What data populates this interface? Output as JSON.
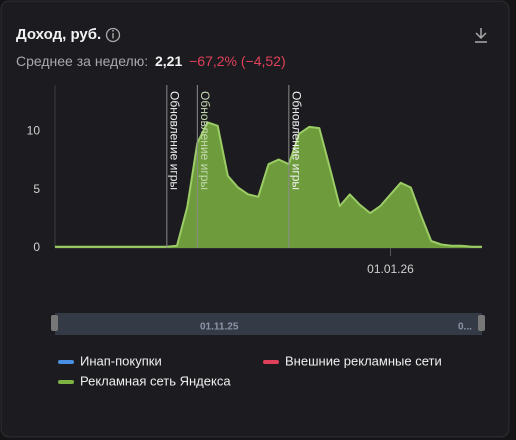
{
  "header": {
    "title": "Доход, руб.",
    "summary_label": "Среднее за неделю:",
    "summary_value": "2,21",
    "summary_change": "−67,2% (−4,52)"
  },
  "chart_data": {
    "type": "area",
    "categories": [
      null,
      null,
      null,
      null,
      null,
      null,
      null,
      null,
      null,
      null,
      null,
      null,
      null,
      null,
      null,
      null,
      null,
      null,
      null,
      null,
      null,
      null,
      null,
      null,
      null,
      null,
      null,
      null,
      null,
      null,
      null,
      null,
      null,
      "01.01.26",
      null,
      null,
      null,
      null,
      null,
      null,
      null,
      null,
      null
    ],
    "series": [
      {
        "name": "Инап-покупки",
        "color": "#4a90e2"
      },
      {
        "name": "Внешние рекламные сети",
        "color": "#e0405a"
      },
      {
        "name": "Рекламная сеть Яндекса",
        "color": "#7cb342",
        "values": [
          0.1,
          0.1,
          0.1,
          0.1,
          0.1,
          0.1,
          0.1,
          0.1,
          0.1,
          0.1,
          0.1,
          0.1,
          0.2,
          3.5,
          9,
          10.8,
          10.5,
          6.2,
          5.2,
          4.6,
          4.4,
          7.2,
          7.6,
          7.2,
          9.8,
          10.4,
          10.3,
          7,
          3.6,
          4.6,
          3.7,
          3,
          3.6,
          4.6,
          5.6,
          5.2,
          2.8,
          0.6,
          0.3,
          0.2,
          0.2,
          0.1,
          0.1
        ]
      }
    ],
    "ylim": [
      0,
      14
    ],
    "yticks": [
      0,
      5,
      10
    ],
    "grid": false,
    "annotations": [
      {
        "text": "Обновление игры",
        "index": 11
      },
      {
        "text": "Обновление игры",
        "index": 14
      },
      {
        "text": "Обновление игры",
        "index": 23
      }
    ],
    "navigator_labels": [
      "01.11.25",
      "0..."
    ]
  }
}
